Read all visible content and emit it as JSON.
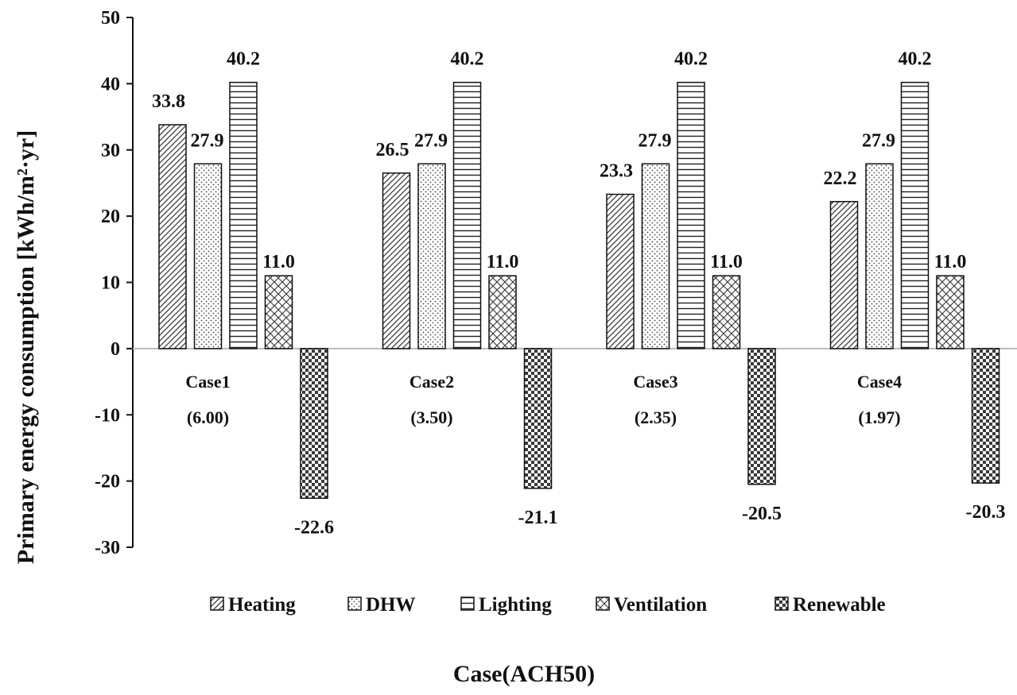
{
  "chart_data": {
    "type": "bar",
    "title": "",
    "xlabel": "Case(ACH50)",
    "ylabel": "Primary energy consumption [kWh/m²·yr]",
    "ylim": [
      -30,
      50
    ],
    "yticks": [
      -30,
      -20,
      -10,
      0,
      10,
      20,
      30,
      40,
      50
    ],
    "grid": false,
    "legend_position": "bottom",
    "categories": [
      {
        "name": "Case1",
        "sub": "(6.00)"
      },
      {
        "name": "Case2",
        "sub": "(3.50)"
      },
      {
        "name": "Case3",
        "sub": "(2.35)"
      },
      {
        "name": "Case4",
        "sub": "(1.97)"
      }
    ],
    "series": [
      {
        "name": "Heating",
        "pattern": "diagonal",
        "values": [
          33.8,
          26.5,
          23.3,
          22.2
        ],
        "labels": [
          "33.8",
          "26.5",
          "23.3",
          "22.2"
        ]
      },
      {
        "name": "DHW",
        "pattern": "dots",
        "values": [
          27.9,
          27.9,
          27.9,
          27.9
        ],
        "labels": [
          "27.9",
          "27.9",
          "27.9",
          "27.9"
        ]
      },
      {
        "name": "Lighting",
        "pattern": "horizontal",
        "values": [
          40.2,
          40.2,
          40.2,
          40.2
        ],
        "labels": [
          "40.2",
          "40.2",
          "40.2",
          "40.2"
        ]
      },
      {
        "name": "Ventilation",
        "pattern": "crosshatch",
        "values": [
          11.0,
          11.0,
          11.0,
          11.0
        ],
        "labels": [
          "11.0",
          "11.0",
          "11.0",
          "11.0"
        ]
      },
      {
        "name": "Renewable",
        "pattern": "checker",
        "values": [
          -22.6,
          -21.1,
          -20.5,
          -20.3
        ],
        "labels": [
          "-22.6",
          "-21.1",
          "-20.5",
          "-20.3"
        ]
      }
    ],
    "colors": {
      "stroke": "#111111",
      "axis": "#111111",
      "baseline": "#bbbbbb"
    }
  }
}
